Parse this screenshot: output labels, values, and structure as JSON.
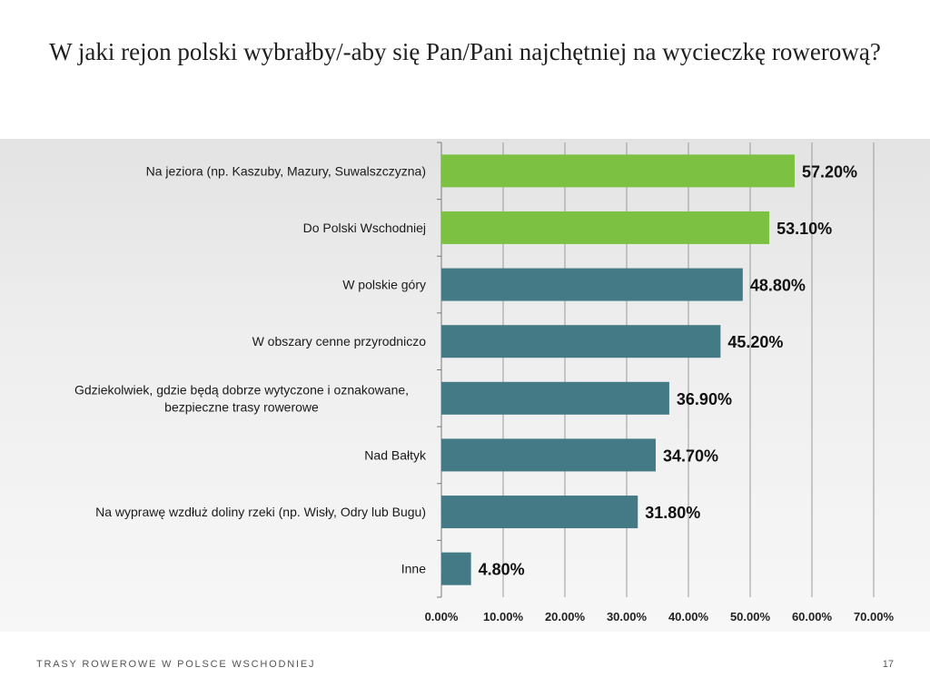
{
  "slide": {
    "title": "W jaki rejon polski wybrałby/-aby się Pan/Pani najchętniej na wycieczkę rowerową?",
    "footer_text": "TRASY ROWEROWE W POLSCE WSCHODNIEJ",
    "page_number": "17"
  },
  "colors": {
    "highlight": "#7dc142",
    "default": "#437a85",
    "gridline": "#9a9a9a"
  },
  "chart_data": {
    "type": "bar",
    "orientation": "horizontal",
    "categories": [
      [
        "Na jeziora (np. Kaszuby, Mazury, Suwalszczyzna)"
      ],
      [
        "Do Polski Wschodniej"
      ],
      [
        "W polskie góry"
      ],
      [
        "W obszary cenne przyrodniczo"
      ],
      [
        "Gdziekolwiek, gdzie będą dobrze wytyczone i oznakowane,",
        "bezpieczne trasy rowerowe"
      ],
      [
        "Nad Bałtyk"
      ],
      [
        "Na wyprawę wzdłuż doliny rzeki (np. Wisły, Odry lub Bugu)"
      ],
      [
        "Inne"
      ]
    ],
    "values": [
      57.2,
      53.1,
      48.8,
      45.2,
      36.9,
      34.7,
      31.8,
      4.8
    ],
    "value_labels": [
      "57.20%",
      "53.10%",
      "48.80%",
      "45.20%",
      "36.90%",
      "34.70%",
      "31.80%",
      "4.80%"
    ],
    "highlighted": [
      true,
      true,
      false,
      false,
      false,
      false,
      false,
      false
    ],
    "xlim": [
      0,
      70
    ],
    "xticks": [
      "0.00%",
      "10.00%",
      "20.00%",
      "30.00%",
      "40.00%",
      "50.00%",
      "60.00%",
      "70.00%"
    ],
    "grid": "vertical",
    "legend": "none"
  }
}
